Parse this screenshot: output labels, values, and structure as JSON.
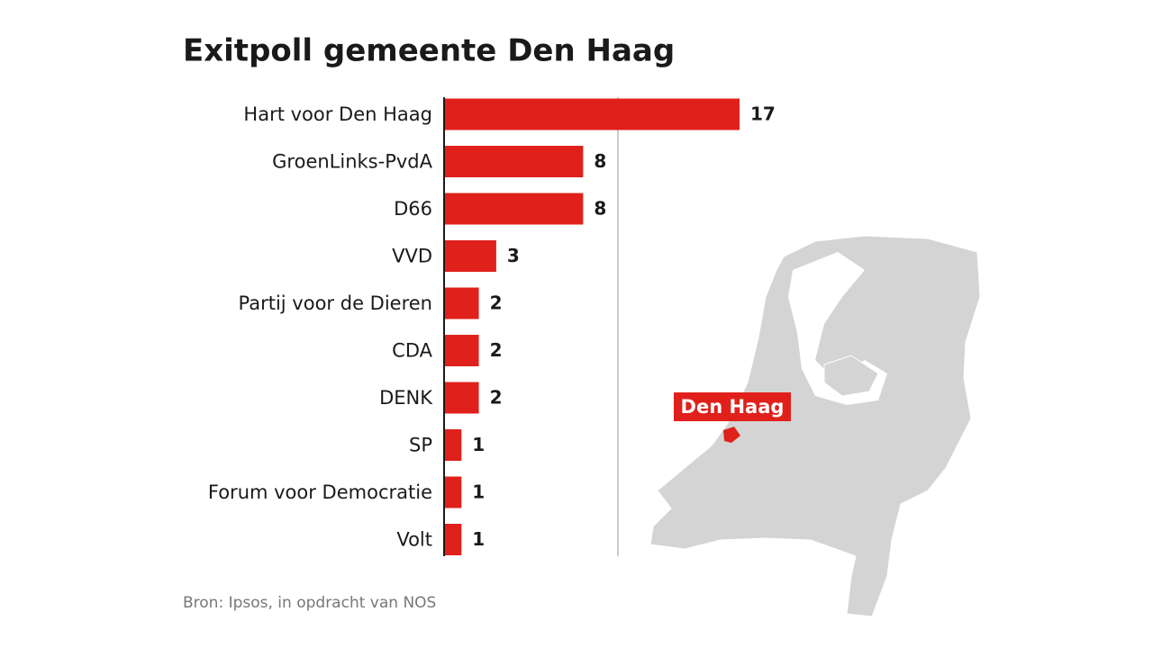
{
  "chart_data": {
    "type": "bar",
    "orientation": "horizontal",
    "title": "Exitpoll gemeente Den Haag",
    "categories": [
      "Hart voor Den Haag",
      "GroenLinks-PvdA",
      "D66",
      "VVD",
      "Partij voor de Dieren",
      "CDA",
      "DENK",
      "SP",
      "Forum voor Democratie",
      "Volt"
    ],
    "values": [
      17,
      8,
      8,
      3,
      2,
      2,
      2,
      1,
      1,
      1
    ],
    "color": "#e0201b",
    "xlim": [
      0,
      17
    ],
    "gridlines": [
      10
    ],
    "map_label": "Den Haag",
    "source": "Bron: Ipsos, in opdracht van NOS"
  }
}
